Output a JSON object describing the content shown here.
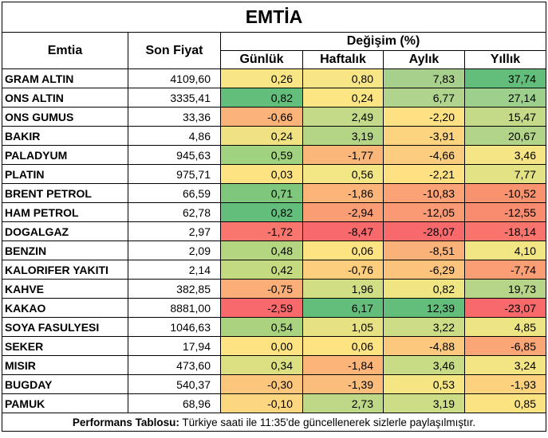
{
  "title": "EMTİA",
  "headers": {
    "commodity": "Emtia",
    "price": "Son Fiyat",
    "change_group": "Değişim (%)",
    "daily": "Günlük",
    "weekly": "Haftalık",
    "monthly": "Aylık",
    "yearly": "Yıllık"
  },
  "rows": [
    {
      "name": "GRAM ALTIN",
      "price": "4109,60",
      "daily": "0,26",
      "weekly": "0,80",
      "monthly": "7,83",
      "yearly": "37,74",
      "colors": [
        "#f8e586",
        "#f8e586",
        "#a8d08d",
        "#63be7b"
      ]
    },
    {
      "name": "ONS ALTIN",
      "price": "3335,41",
      "daily": "0,82",
      "weekly": "0,24",
      "monthly": "6,77",
      "yearly": "27,14",
      "colors": [
        "#63be7b",
        "#fce583",
        "#b0d48e",
        "#9cd08c"
      ]
    },
    {
      "name": "ONS GUMUS",
      "price": "33,36",
      "daily": "-0,66",
      "weekly": "2,49",
      "monthly": "-2,20",
      "yearly": "15,47",
      "colors": [
        "#fbb379",
        "#c3da89",
        "#fde182",
        "#c5da89"
      ]
    },
    {
      "name": "BAKIR",
      "price": "4,86",
      "daily": "0,24",
      "weekly": "3,19",
      "monthly": "-3,91",
      "yearly": "20,67",
      "colors": [
        "#f0e282",
        "#b5d586",
        "#fcd37f",
        "#b2d488"
      ]
    },
    {
      "name": "PALADYUM",
      "price": "945,63",
      "daily": "0,59",
      "weekly": "-1,77",
      "monthly": "-4,66",
      "yearly": "3,46",
      "colors": [
        "#a0d27f",
        "#fbb679",
        "#fccd7e",
        "#f6e584"
      ]
    },
    {
      "name": "PLATIN",
      "price": "975,71",
      "daily": "0,03",
      "weekly": "0,56",
      "monthly": "-2,21",
      "yearly": "7,77",
      "colors": [
        "#fee382",
        "#f2e685",
        "#fde182",
        "#e3e284"
      ]
    },
    {
      "name": "BRENT PETROL",
      "price": "66,59",
      "daily": "0,71",
      "weekly": "-1,86",
      "monthly": "-10,83",
      "yearly": "-10,52",
      "colors": [
        "#7ec77c",
        "#fbb579",
        "#fba276",
        "#f9936f"
      ]
    },
    {
      "name": "HAM PETROL",
      "price": "62,78",
      "daily": "0,82",
      "weekly": "-2,94",
      "monthly": "-12,05",
      "yearly": "-12,55",
      "colors": [
        "#63be7b",
        "#fa9c74",
        "#fa9a74",
        "#f98b6e"
      ]
    },
    {
      "name": "DOGALGAZ",
      "price": "2,97",
      "daily": "-1,72",
      "weekly": "-8,47",
      "monthly": "-28,07",
      "yearly": "-18,14",
      "colors": [
        "#f8766d",
        "#f8696b",
        "#f8696b",
        "#f8746d"
      ]
    },
    {
      "name": "BENZIN",
      "price": "2,09",
      "daily": "0,48",
      "weekly": "0,06",
      "monthly": "-8,51",
      "yearly": "4,10",
      "colors": [
        "#b4d680",
        "#fee382",
        "#fbb278",
        "#f1e584"
      ]
    },
    {
      "name": "KALORIFER YAKITI",
      "price": "2,14",
      "daily": "0,42",
      "weekly": "-0,76",
      "monthly": "-6,29",
      "yearly": "-7,74",
      "colors": [
        "#c4da81",
        "#fcce7e",
        "#fcc37c",
        "#fa9f75"
      ]
    },
    {
      "name": "KAHVE",
      "price": "382,85",
      "daily": "-0,75",
      "weekly": "1,96",
      "monthly": "0,82",
      "yearly": "19,73",
      "colors": [
        "#fbae77",
        "#d2de84",
        "#f0e583",
        "#b6d588"
      ]
    },
    {
      "name": "KAKAO",
      "price": "8881,00",
      "daily": "-2,59",
      "weekly": "6,17",
      "monthly": "12,39",
      "yearly": "-23,07",
      "colors": [
        "#f8696b",
        "#63be7b",
        "#63be7b",
        "#f8696b"
      ]
    },
    {
      "name": "SOYA FASULYESI",
      "price": "1046,63",
      "daily": "0,54",
      "weekly": "1,05",
      "monthly": "3,22",
      "yearly": "4,85",
      "colors": [
        "#aad37f",
        "#e6e183",
        "#cddd86",
        "#ede484"
      ]
    },
    {
      "name": "SEKER",
      "price": "17,94",
      "daily": "0,00",
      "weekly": "0,06",
      "monthly": "-4,88",
      "yearly": "-6,85",
      "colors": [
        "#fee382",
        "#fee382",
        "#fcc87d",
        "#faa676"
      ]
    },
    {
      "name": "MISIR",
      "price": "473,60",
      "daily": "0,34",
      "weekly": "-1,84",
      "monthly": "3,46",
      "yearly": "3,24",
      "colors": [
        "#dce082",
        "#fbb579",
        "#c8dc86",
        "#f4e584"
      ]
    },
    {
      "name": "BUGDAY",
      "price": "540,37",
      "daily": "-0,30",
      "weekly": "-1,39",
      "monthly": "0,53",
      "yearly": "-1,93",
      "colors": [
        "#fcc67c",
        "#fbbd7b",
        "#f6e583",
        "#fcd27f"
      ]
    },
    {
      "name": "PAMUK",
      "price": "68,96",
      "daily": "-0,10",
      "weekly": "2,73",
      "monthly": "3,19",
      "yearly": "0,85",
      "colors": [
        "#fdd680",
        "#bfd887",
        "#cddd86",
        "#fbe382"
      ]
    }
  ],
  "footer": {
    "bold": "Performans Tablosu:",
    "text": " Türkiye saati ile 11:35'de güncellenerek sizlerle paylaşılmıştır."
  }
}
